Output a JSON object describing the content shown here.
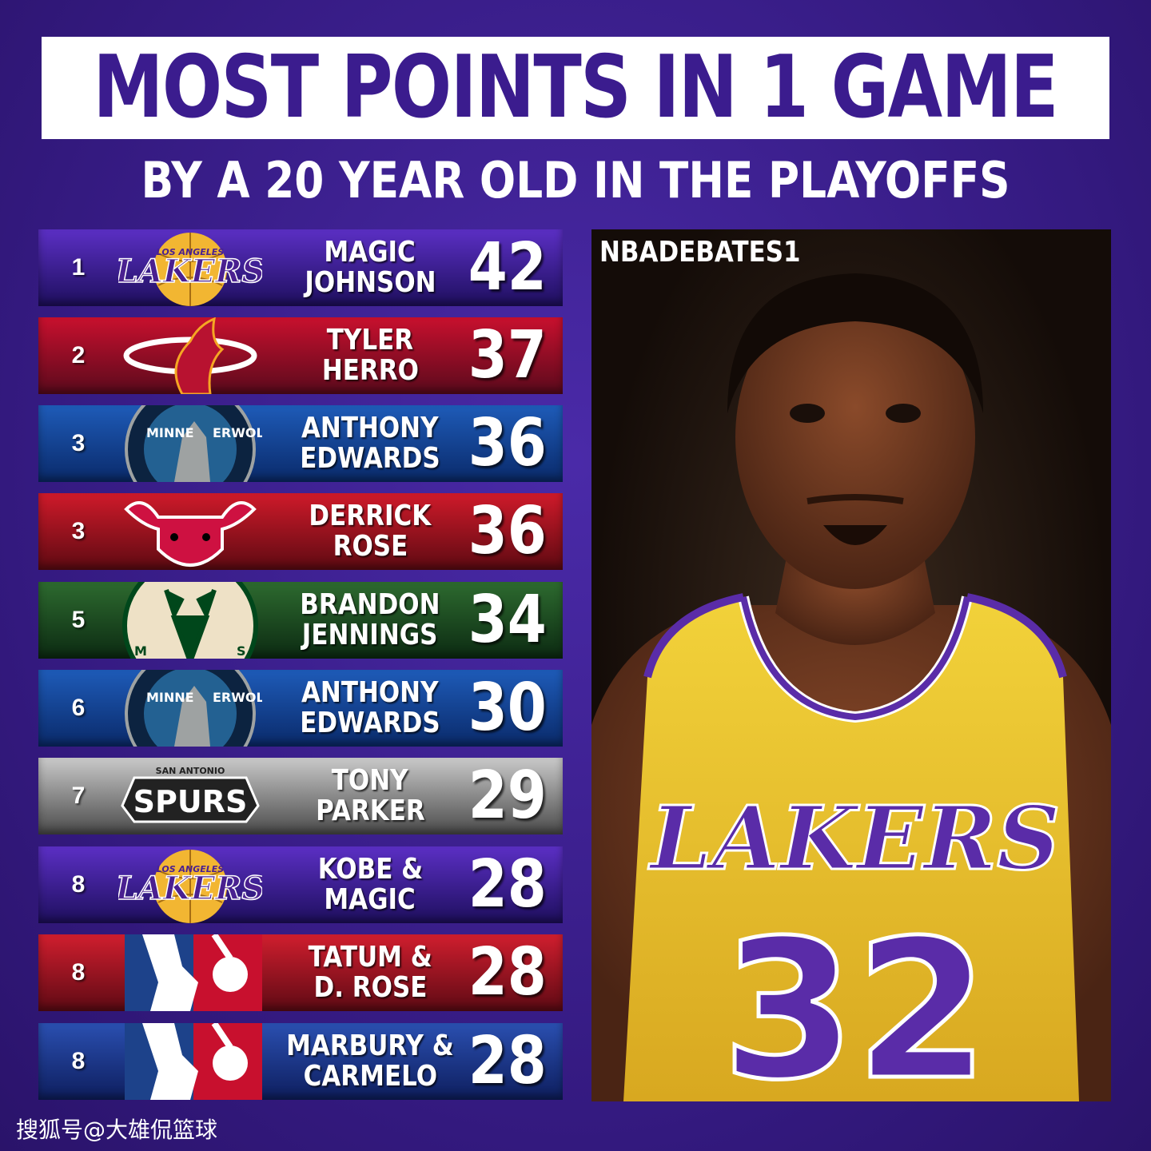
{
  "title": "MOST POINTS IN 1 GAME",
  "subtitle": "BY A 20 YEAR OLD IN THE PLAYOFFS",
  "watermark": "NBADEBATES1",
  "footer": "搜狐号@大雄侃篮球",
  "photo": {
    "jersey_text": "LAKERS",
    "jersey_number": "32"
  },
  "rows": [
    {
      "rank": "1",
      "line1": "MAGIC",
      "line2": "JOHNSON",
      "points": "42",
      "logo": "lakers-logo",
      "logo_text": "LAKERS",
      "logo_subtext": "LOS ANGELES",
      "bg1": "#5b2fc4",
      "bg2": "#1e0f5e"
    },
    {
      "rank": "2",
      "line1": "TYLER",
      "line2": "HERRO",
      "points": "37",
      "logo": "heat-logo",
      "bg1": "#c8102e",
      "bg2": "#5a0a1c"
    },
    {
      "rank": "3",
      "line1": "ANTHONY",
      "line2": "EDWARDS",
      "points": "36",
      "logo": "timberwolves-logo",
      "logo_text": "MINNE",
      "logo_text2": "ERWOLVE",
      "bg1": "#1e5bb8",
      "bg2": "#0a2a6a"
    },
    {
      "rank": "3",
      "line1": "DERRICK",
      "line2": "ROSE",
      "points": "36",
      "logo": "bulls-logo",
      "bg1": "#cf1a2a",
      "bg2": "#5e0a12"
    },
    {
      "rank": "5",
      "line1": "BRANDON",
      "line2": "JENNINGS",
      "points": "34",
      "logo": "bucks-logo",
      "logo_text": "M",
      "logo_text2": "S",
      "bg1": "#2d6a2f",
      "bg2": "#0c2a12"
    },
    {
      "rank": "6",
      "line1": "ANTHONY",
      "line2": "EDWARDS",
      "points": "30",
      "logo": "timberwolves-logo",
      "logo_text": "MINNE",
      "logo_text2": "ERWOLVE",
      "bg1": "#1e5bb8",
      "bg2": "#0a2a6a"
    },
    {
      "rank": "7",
      "line1": "TONY",
      "line2": "PARKER",
      "points": "29",
      "logo": "spurs-logo",
      "logo_text": "SPURS",
      "logo_subtext": "SAN ANTONIO",
      "bg1": "#c9c9c9",
      "bg2": "#4a4a4a"
    },
    {
      "rank": "8",
      "line1": "KOBE &",
      "line2": "MAGIC",
      "points": "28",
      "logo": "lakers-logo",
      "logo_text": "LAKERS",
      "logo_subtext": "LOS ANGELES",
      "bg1": "#5b2fc4",
      "bg2": "#1e0f5e"
    },
    {
      "rank": "8",
      "line1": "TATUM &",
      "line2": "D. ROSE",
      "points": "28",
      "logo": "nba-logo",
      "bg1": "#d01e2e",
      "bg2": "#5e0a14"
    },
    {
      "rank": "8",
      "line1": "MARBURY &",
      "line2": "CARMELO",
      "points": "28",
      "logo": "nba-logo",
      "bg1": "#2a4fb0",
      "bg2": "#0e1e5e"
    }
  ]
}
